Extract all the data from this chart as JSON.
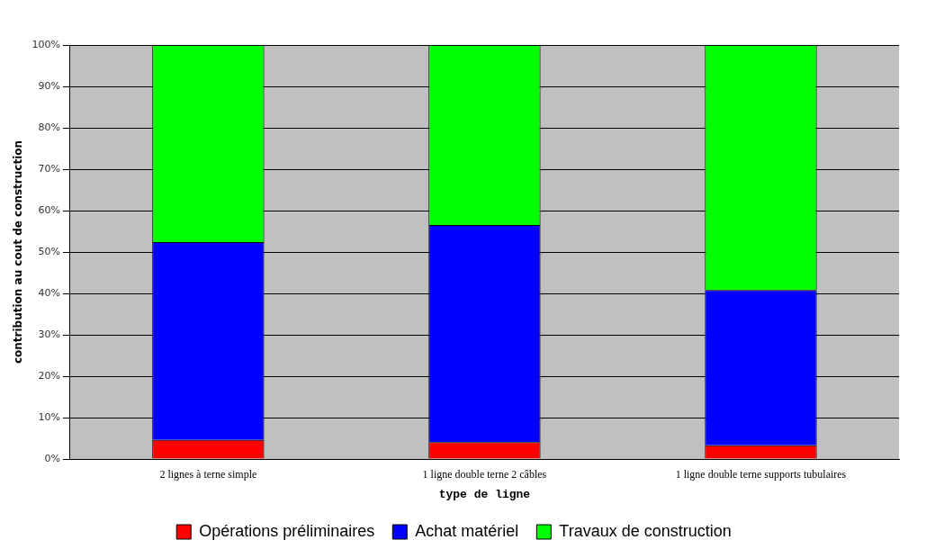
{
  "chart_data": {
    "type": "bar",
    "stacked": true,
    "xlabel": "type de ligne",
    "ylabel": "contribution au cout de construction",
    "categories": [
      "2 lignes à terne simple",
      "1 ligne double terne 2 câbles",
      "1 ligne double terne supports tubulaires"
    ],
    "series": [
      {
        "name": "Opérations préliminaires",
        "color": "#ff0000",
        "values": [
          4.6,
          4.1,
          3.3
        ]
      },
      {
        "name": "Achat matériel",
        "color": "#0000ff",
        "values": [
          47.8,
          52.4,
          37.5
        ]
      },
      {
        "name": "Travaux de construction",
        "color": "#00ff00",
        "values": [
          47.6,
          43.5,
          59.2
        ]
      }
    ],
    "ylim": [
      0,
      100
    ],
    "yticks": [
      {
        "value": 0,
        "label": "0%"
      },
      {
        "value": 10,
        "label": "10%"
      },
      {
        "value": 20,
        "label": "20%"
      },
      {
        "value": 30,
        "label": "30%"
      },
      {
        "value": 40,
        "label": "40%"
      },
      {
        "value": 50,
        "label": "50%"
      },
      {
        "value": 60,
        "label": "60%"
      },
      {
        "value": 70,
        "label": "70%"
      },
      {
        "value": 80,
        "label": "80%"
      },
      {
        "value": 90,
        "label": "90%"
      },
      {
        "value": 100,
        "label": "100%"
      }
    ],
    "grid": "y",
    "legend": "bottom"
  }
}
